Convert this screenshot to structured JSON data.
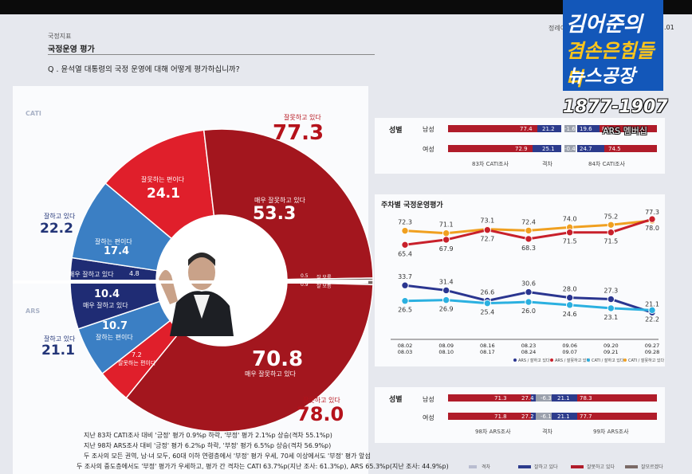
{
  "header": {
    "category": "국정지표",
    "title": "국정운영 평가",
    "question": "Q . 윤석열 대통령의 국정 운영에 대해 어떻게 평가하십니까?",
    "right_cut": "정례이",
    "right_cut2": ".01"
  },
  "branding": {
    "line1": "김어준의",
    "line2": "겸손은힘들다",
    "line3": "뉴스공장",
    "phone": "1877-1907",
    "ars_tag": "ARS 멤버십"
  },
  "colors": {
    "very_bad": "#a3161e",
    "bad": "#e01f2b",
    "good": "#3b7fc4",
    "very_good": "#1f2c74",
    "panel": "#fafbfd"
  },
  "donut": {
    "cati_label": "CATI",
    "ars_label": "ARS",
    "cati_bad_total_label": "잘못하고 있다",
    "cati_bad_total": "77.3",
    "cati_very_bad_label": "매우 잘못하고 있다",
    "cati_very_bad": "53.3",
    "cati_bad_label": "잘못하는 편이다",
    "cati_bad": "24.1",
    "cati_good_total_label": "잘하고 있다",
    "cati_good_total": "22.2",
    "cati_good_label": "잘하는 편이다",
    "cati_good": "17.4",
    "cati_very_good_label": "매우 잘하고 있다",
    "cati_very_good": "4.8",
    "cati_dk": "0.5",
    "cati_dk_label": "잘 모름",
    "ars_dk": "0.9",
    "ars_dk_label": "잘 모름",
    "ars_very_good_label": "매우 잘하고 있다",
    "ars_very_good": "10.4",
    "ars_good_label": "잘하는 편이다",
    "ars_good": "10.7",
    "ars_good_total_label": "잘하고 있다",
    "ars_good_total": "21.1",
    "ars_bad_label": "잘못하는 편이다",
    "ars_bad": "7.2",
    "ars_very_bad_label": "매우 잘못하고 있다",
    "ars_very_bad": "70.8",
    "ars_bad_total_label": "잘못하고 있다",
    "ars_bad_total": "78.0"
  },
  "gender_cati": {
    "row_label": "성별",
    "male": "남성",
    "female": "여성",
    "male_prev": [
      "77.4",
      "21.2"
    ],
    "female_prev": [
      "72.9",
      "25.1"
    ],
    "male_diff": "-1.6",
    "female_diff": "-0.4",
    "male_cur": [
      "19.6",
      "80"
    ],
    "female_cur": [
      "24.7",
      "74.5"
    ],
    "foot_prev": "83차 CATI조사",
    "foot_diff": "격차",
    "foot_cur": "84차 CATI조사"
  },
  "gender_ars": {
    "row_label": "성별",
    "male": "남성",
    "female": "여성",
    "male_prev": [
      "71.3",
      "27.4"
    ],
    "female_prev": [
      "71.8",
      "27.2"
    ],
    "male_diff": "-6.3",
    "female_diff": "-6.1",
    "male_cur": [
      "21.1",
      "78.3"
    ],
    "female_cur": [
      "21.1",
      "77.7"
    ],
    "foot_prev": "98차 ARS조사",
    "foot_diff": "격차",
    "foot_cur": "99차 ARS조사"
  },
  "chart_data": {
    "type": "line",
    "title": "주차별 국정운영평가",
    "categories": [
      "08.02 / 08.03",
      "08.09 / 08.10",
      "08.16 / 08.17",
      "08.23 / 08.24",
      "09.06 / 09.07",
      "09.20 / 09.21",
      "09.27 / 09.28"
    ],
    "x_top": [
      "08.02",
      "08.09",
      "08.16",
      "08.23",
      "09.06",
      "09.20",
      "09.27"
    ],
    "x_bottom": [
      "08.03",
      "08.10",
      "08.17",
      "08.24",
      "09.07",
      "09.21",
      "09.28"
    ],
    "series": [
      {
        "name": "CATI / 잘못하고 있다",
        "color": "#f0a020",
        "values": [
          72.3,
          71.1,
          73.1,
          72.4,
          74.0,
          75.2,
          77.3
        ]
      },
      {
        "name": "ARS / 잘못하고 있다",
        "color": "#c8202b",
        "values": [
          65.4,
          67.9,
          72.7,
          68.3,
          71.5,
          71.5,
          78.0
        ]
      },
      {
        "name": "ARS / 잘하고 있다",
        "color": "#2a3590",
        "values": [
          33.7,
          31.4,
          26.6,
          30.6,
          28.0,
          27.3,
          21.1
        ]
      },
      {
        "name": "CATI / 잘하고 있다",
        "color": "#2bb0e0",
        "values": [
          26.5,
          26.9,
          25.4,
          26.0,
          24.6,
          23.1,
          22.2
        ]
      }
    ],
    "legend": [
      "ARS / 잘하고 있다",
      "ARS / 잘못하고 있다",
      "CATI / 잘하고 있다",
      "CATI / 잘못하고 있다"
    ],
    "legend_placement": "bottom"
  },
  "bottom_legend": [
    "격차",
    "잘하고 있다",
    "잘못하고 있다",
    "잘모르겠다"
  ],
  "notes": [
    "지난 83차 CATI조사 대비 '긍정' 평가 0.9%p 하락, '부정' 평가 2.1%p 상승(격차 55.1%p)",
    "지난 98차 ARS조사 대비 '긍정' 평가 6.2%p 하락, '부정' 평가 6.5%p 상승(격차 56.9%p)",
    "두 조사의 모든 권역, 남·녀 모두, 60대 이하 연령층에서 '부정' 평가 우세, 70세 이상에서도 '부정' 평가 앞섬",
    "두 조사의 중도층에서도 '부정' 평가가 우세하고, 평가 간 격차는 CATI 63.7%p(지난 조사: 61.3%p), ARS 65.3%p(지난 조사: 44.9%p)"
  ]
}
